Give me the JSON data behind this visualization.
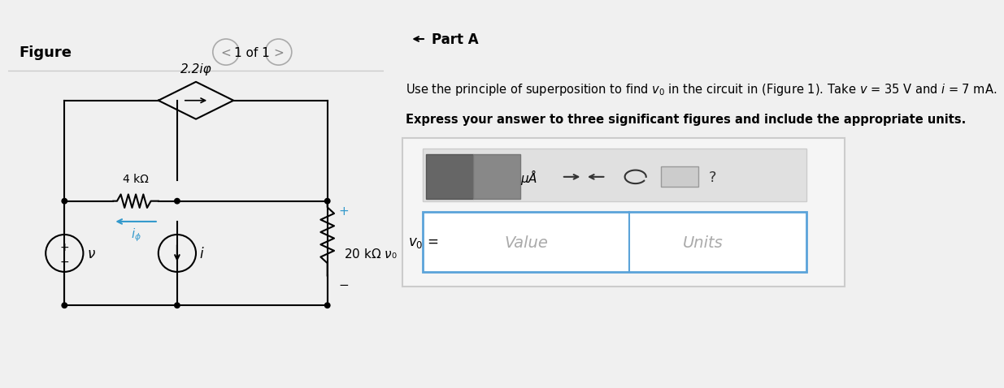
{
  "bg_color": "#f5f5f5",
  "right_bg": "#ffffff",
  "left_bg": "#ffffff",
  "figure_label": "Figure",
  "nav_text": "1 of 1",
  "part_a_title": "Part A",
  "problem_text_line1": "Use the principle of superposition to find ν₀ in the circuit in (Figure 1). Take ν = 35 V and ι = 7 mA.",
  "problem_text_line2": "Express your answer to three significant figures and include the appropriate units.",
  "vo_label": "ν₀ =",
  "value_placeholder": "Value",
  "units_placeholder": "Units",
  "resistor1_label": "4 kΩ",
  "resistor2_label": "20 kΩ",
  "dep_source_label": "2.2iφ",
  "iphi_label": "iφ",
  "v_label": "ν",
  "i_label": "i",
  "vo_circuit_label": "ν₀",
  "plus_label": "+",
  "minus_label": "−",
  "toolbar_color": "#888888",
  "input_border_color": "#5ba3d9",
  "divider_color": "#cccccc"
}
